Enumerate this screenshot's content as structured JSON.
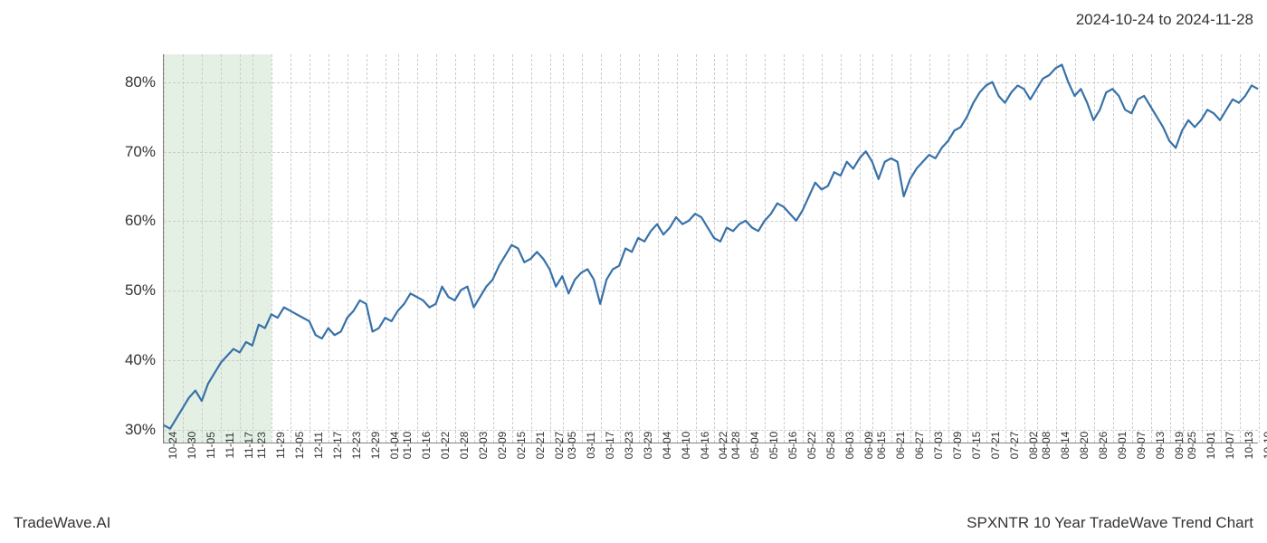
{
  "date_range": "2024-10-24 to 2024-11-28",
  "footer_left": "TradeWave.AI",
  "footer_right": "SPXNTR 10 Year TradeWave Trend Chart",
  "chart": {
    "type": "line",
    "line_color": "#3871a8",
    "line_width": 2.2,
    "background_color": "#ffffff",
    "grid_color": "#cccccc",
    "highlight_color": "#d4e6d4",
    "highlight_start_index": 0,
    "highlight_end_index": 6,
    "ylim": [
      28,
      84
    ],
    "ytick_values": [
      30,
      40,
      50,
      60,
      70,
      80
    ],
    "ytick_labels": [
      "30%",
      "40%",
      "50%",
      "60%",
      "70%",
      "80%"
    ],
    "y_label_fontsize": 17,
    "x_label_fontsize": 12,
    "x_labels": [
      "10-24",
      "10-30",
      "11-05",
      "11-11",
      "11-17",
      "11-23",
      "11-29",
      "12-05",
      "12-11",
      "12-17",
      "12-23",
      "12-29",
      "01-04",
      "01-10",
      "01-16",
      "01-22",
      "01-28",
      "02-03",
      "02-09",
      "02-15",
      "02-21",
      "02-27",
      "03-05",
      "03-11",
      "03-17",
      "03-23",
      "03-29",
      "04-04",
      "04-10",
      "04-16",
      "04-22",
      "04-28",
      "05-04",
      "05-10",
      "05-16",
      "05-22",
      "05-28",
      "06-03",
      "06-09",
      "06-15",
      "06-21",
      "06-27",
      "07-03",
      "07-09",
      "07-15",
      "07-21",
      "07-27",
      "08-02",
      "08-08",
      "08-14",
      "08-20",
      "08-26",
      "09-01",
      "09-07",
      "09-13",
      "09-19",
      "09-25",
      "10-01",
      "10-07",
      "10-13",
      "10-19"
    ],
    "values": [
      30.5,
      30.0,
      31.5,
      33.0,
      34.5,
      35.5,
      34.0,
      36.5,
      38.0,
      39.5,
      40.5,
      41.5,
      41.0,
      42.5,
      42.0,
      45.0,
      44.5,
      46.5,
      46.0,
      47.5,
      47.0,
      46.5,
      46.0,
      45.5,
      43.5,
      43.0,
      44.5,
      43.5,
      44.0,
      46.0,
      47.0,
      48.5,
      48.0,
      44.0,
      44.5,
      46.0,
      45.5,
      47.0,
      48.0,
      49.5,
      49.0,
      48.5,
      47.5,
      48.0,
      50.5,
      49.0,
      48.5,
      50.0,
      50.5,
      47.5,
      49.0,
      50.5,
      51.5,
      53.5,
      55.0,
      56.5,
      56.0,
      54.0,
      54.5,
      55.5,
      54.5,
      53.0,
      50.5,
      52.0,
      49.5,
      51.5,
      52.5,
      53.0,
      51.5,
      48.0,
      51.5,
      53.0,
      53.5,
      56.0,
      55.5,
      57.5,
      57.0,
      58.5,
      59.5,
      58.0,
      59.0,
      60.5,
      59.5,
      60.0,
      61.0,
      60.5,
      59.0,
      57.5,
      57.0,
      59.0,
      58.5,
      59.5,
      60.0,
      59.0,
      58.5,
      60.0,
      61.0,
      62.5,
      62.0,
      61.0,
      60.0,
      61.5,
      63.5,
      65.5,
      64.5,
      65.0,
      67.0,
      66.5,
      68.5,
      67.5,
      69.0,
      70.0,
      68.5,
      66.0,
      68.5,
      69.0,
      68.5,
      63.5,
      66.0,
      67.5,
      68.5,
      69.5,
      69.0,
      70.5,
      71.5,
      73.0,
      73.5,
      75.0,
      77.0,
      78.5,
      79.5,
      80.0,
      78.0,
      77.0,
      78.5,
      79.5,
      79.0,
      77.5,
      79.0,
      80.5,
      81.0,
      82.0,
      82.5,
      80.0,
      78.0,
      79.0,
      77.0,
      74.5,
      76.0,
      78.5,
      79.0,
      78.0,
      76.0,
      75.5,
      77.5,
      78.0,
      76.5,
      75.0,
      73.5,
      71.5,
      70.5,
      73.0,
      74.5,
      73.5,
      74.5,
      76.0,
      75.5,
      74.5,
      76.0,
      77.5,
      77.0,
      78.0,
      79.5,
      79.0
    ]
  }
}
